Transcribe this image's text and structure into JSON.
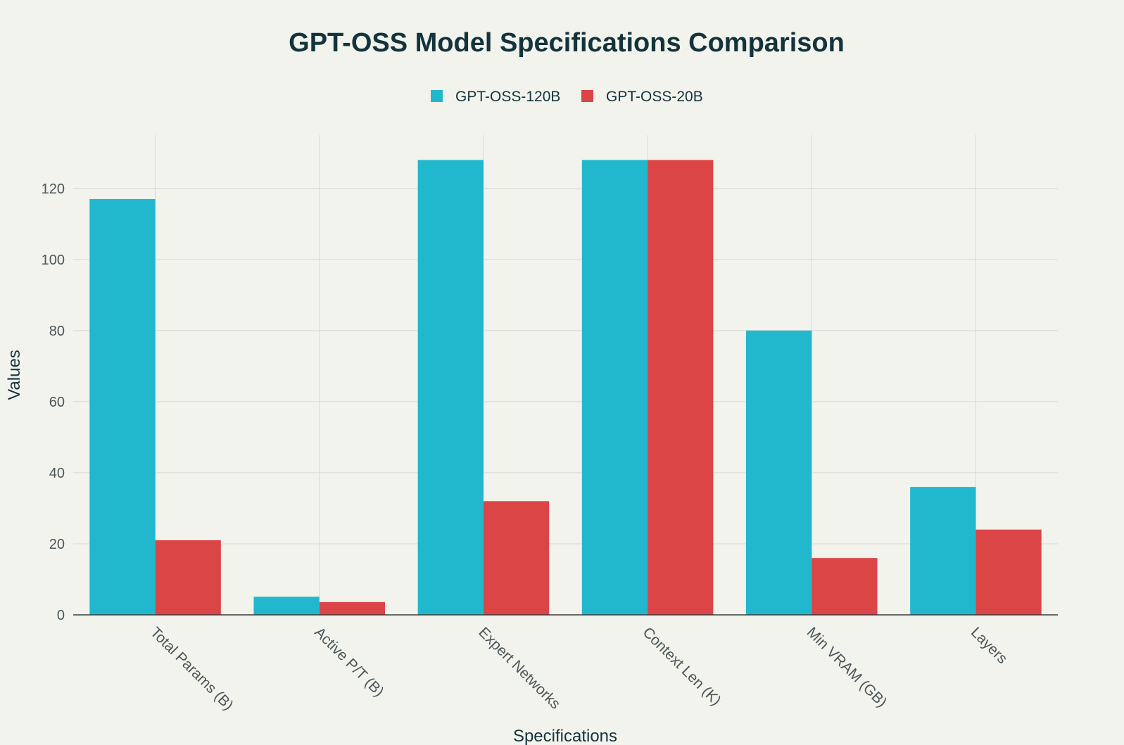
{
  "chart_data": {
    "type": "bar",
    "title": "GPT-OSS Model Specifications Comparison",
    "xlabel": "Specifications",
    "ylabel": "Values",
    "categories": [
      "Total Params (B)",
      "Active P/T (B)",
      "Expert Networks",
      "Context Len (K)",
      "Min VRAM (GB)",
      "Layers"
    ],
    "series": [
      {
        "name": "GPT-OSS-120B",
        "color": "#21b8cd",
        "values": [
          117,
          5.1,
          128,
          128,
          80,
          36
        ]
      },
      {
        "name": "GPT-OSS-20B",
        "color": "#db4545",
        "values": [
          21,
          3.6,
          32,
          128,
          16,
          24
        ]
      }
    ],
    "ylim": [
      0,
      135
    ],
    "yticks": [
      0,
      20,
      40,
      60,
      80,
      100,
      120
    ],
    "grid": true,
    "legend_position": "top-center"
  }
}
